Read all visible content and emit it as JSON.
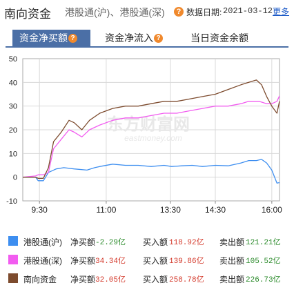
{
  "header": {
    "title": "南向资金",
    "subtitle": "港股通(沪)、港股通(深)",
    "help_icon": "?",
    "date_label": "数据日期:",
    "date": "2021-03-12",
    "more_link": "更多"
  },
  "tabs": [
    {
      "label": "资金净买额",
      "active": true,
      "help": "?"
    },
    {
      "label": "资金净流入",
      "active": false,
      "help": "?"
    },
    {
      "label": "当日资金余额",
      "active": false
    }
  ],
  "watermark": {
    "text_cn": "东方财富网",
    "text_en": "eastmoney.com"
  },
  "chart_data": {
    "type": "line",
    "x_ticks": [
      "9:30",
      "11:00",
      "13:30",
      "14:30",
      "16:00"
    ],
    "y_ticks": [
      -10,
      0,
      10,
      20,
      30,
      40,
      50
    ],
    "ylim": [
      -10,
      50
    ],
    "grid": true,
    "series": [
      {
        "name": "港股通(沪)",
        "color": "#3d8ef0",
        "x": [
          0,
          0.05,
          0.06,
          0.08,
          0.1,
          0.13,
          0.16,
          0.2,
          0.25,
          0.28,
          0.3,
          0.35,
          0.4,
          0.45,
          0.5,
          0.55,
          0.58,
          0.62,
          0.66,
          0.7,
          0.75,
          0.8,
          0.85,
          0.88,
          0.91,
          0.93,
          0.95,
          0.97,
          0.99,
          1.0
        ],
        "values": [
          0,
          0,
          -1.5,
          -1.5,
          2,
          3.5,
          4,
          3.5,
          3,
          4,
          4.5,
          5.5,
          5,
          5,
          4.5,
          5,
          4.5,
          4.8,
          5,
          4.5,
          5,
          4.8,
          6,
          7,
          7,
          7.5,
          6,
          3,
          -2.5,
          -2.29
        ]
      },
      {
        "name": "港股通(深)",
        "color": "#f25cf0",
        "x": [
          0,
          0.05,
          0.06,
          0.08,
          0.1,
          0.12,
          0.15,
          0.18,
          0.2,
          0.23,
          0.26,
          0.3,
          0.35,
          0.4,
          0.45,
          0.5,
          0.55,
          0.6,
          0.65,
          0.7,
          0.75,
          0.8,
          0.85,
          0.88,
          0.92,
          0.95,
          0.97,
          0.99,
          1.0
        ],
        "values": [
          0,
          0.5,
          1,
          1,
          2,
          12,
          16,
          20,
          19,
          17,
          20,
          22,
          24,
          25,
          25,
          26,
          27,
          27,
          28,
          29,
          30,
          30,
          31,
          32,
          32,
          31,
          31,
          32,
          34.34
        ]
      },
      {
        "name": "南向资金",
        "color": "#7d4b2e",
        "x": [
          0,
          0.05,
          0.06,
          0.08,
          0.1,
          0.12,
          0.15,
          0.18,
          0.2,
          0.23,
          0.26,
          0.3,
          0.35,
          0.4,
          0.45,
          0.5,
          0.55,
          0.6,
          0.65,
          0.7,
          0.75,
          0.8,
          0.85,
          0.88,
          0.91,
          0.93,
          0.95,
          0.97,
          0.99,
          1.0
        ],
        "values": [
          0,
          0,
          -0.5,
          -0.5,
          4,
          15,
          19,
          24,
          23,
          20,
          24,
          27,
          29,
          30,
          30,
          31,
          32,
          32,
          33,
          34,
          35,
          37,
          39,
          40,
          41,
          39,
          34,
          30,
          27,
          32.05
        ]
      }
    ]
  },
  "legend": [
    {
      "name": "港股通(沪)",
      "color": "#3d8ef0",
      "net_label": "净买额",
      "net": "-2.29亿",
      "net_sign": "neg",
      "buy_label": "买入额",
      "buy": "118.92亿",
      "sell_label": "卖出额",
      "sell": "121.21亿"
    },
    {
      "name": "港股通(深)",
      "color": "#f25cf0",
      "net_label": "净买额",
      "net": "34.34亿",
      "net_sign": "pos",
      "buy_label": "买入额",
      "buy": "139.86亿",
      "sell_label": "卖出额",
      "sell": "105.52亿"
    },
    {
      "name": "南向资金",
      "color": "#7d4b2e",
      "net_label": "净买额",
      "net": "32.05亿",
      "net_sign": "pos",
      "buy_label": "买入额",
      "buy": "258.78亿",
      "sell_label": "卖出额",
      "sell": "226.73亿"
    }
  ]
}
